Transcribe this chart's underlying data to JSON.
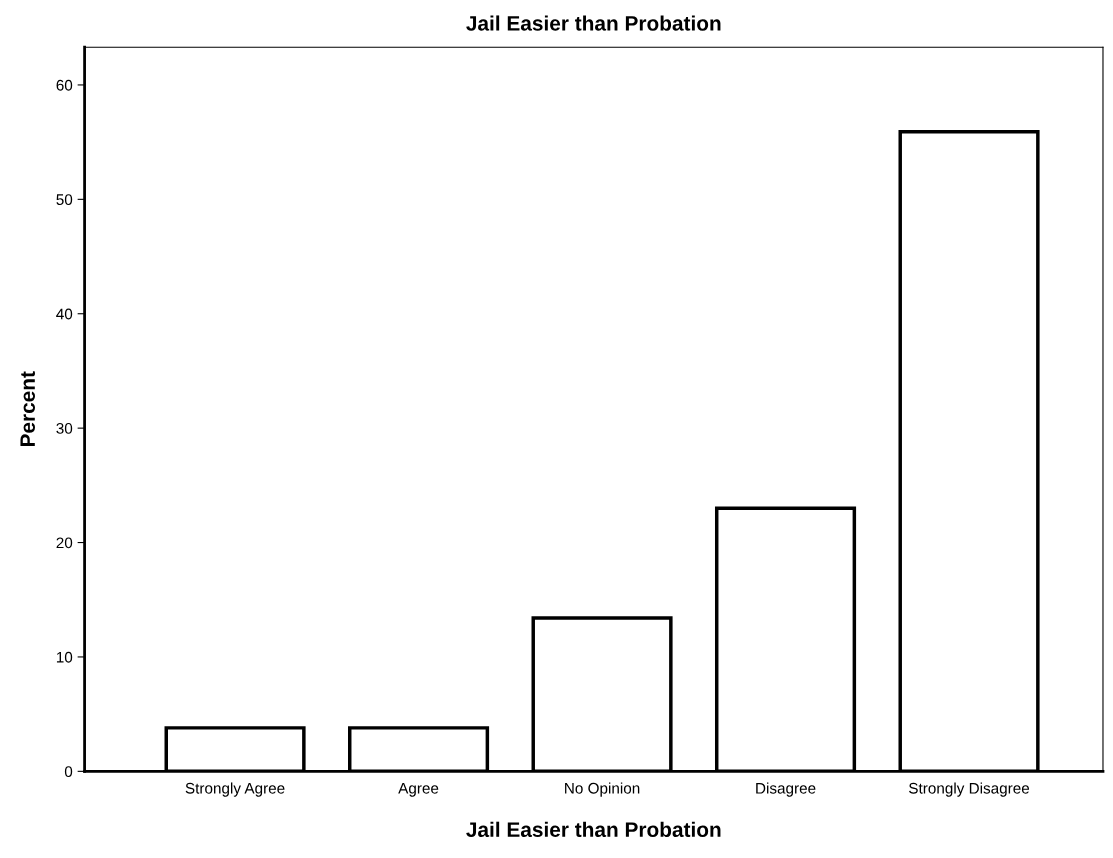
{
  "chart_data": {
    "type": "bar",
    "title": "Jail Easier than Probation",
    "xlabel": "Jail Easier than Probation",
    "ylabel": "Percent",
    "categories": [
      "Strongly Agree",
      "Agree",
      "No Opinion",
      "Disagree",
      "Strongly Disagree"
    ],
    "values": [
      3.8,
      3.8,
      13.4,
      23.0,
      55.9
    ],
    "color": "#ffffff",
    "ylim": [
      0,
      63.3
    ],
    "yticks": [
      0,
      10,
      20,
      30,
      40,
      50,
      60
    ],
    "grid": false
  }
}
